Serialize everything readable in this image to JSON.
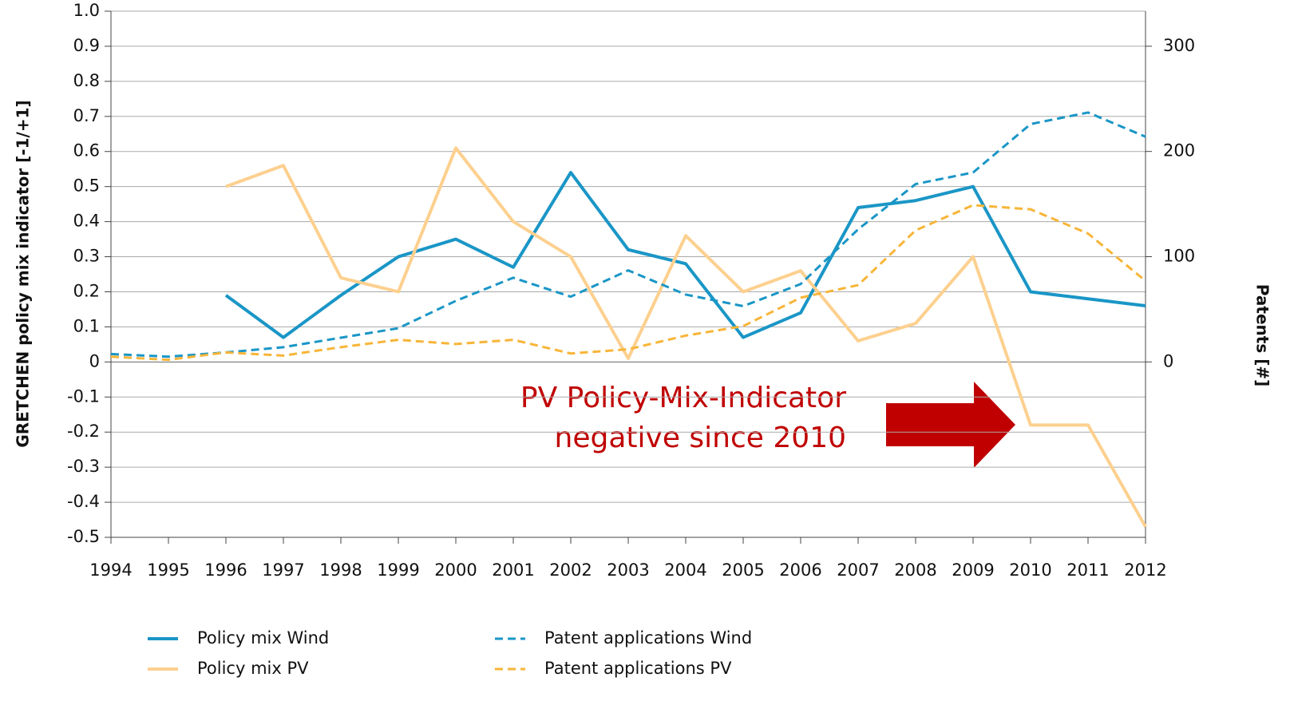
{
  "chart_data": {
    "type": "line",
    "y_label": "GRETCHEN policy  mix indicator [-1/+1]",
    "y2_label": "Patents [#]",
    "annotation": [
      "PV Policy-Mix-Indicator",
      "negative since 2010"
    ],
    "categories": [
      "1994",
      "1995",
      "1996",
      "1997",
      "1998",
      "1999",
      "2000",
      "2001",
      "2002",
      "2003",
      "2004",
      "2005",
      "2006",
      "2007",
      "2008",
      "2009",
      "2010",
      "2011",
      "2012"
    ],
    "ylim": [
      -0.5,
      1.0
    ],
    "yticks": [
      -0.5,
      -0.4,
      -0.3,
      -0.2,
      -0.1,
      0,
      0.1,
      0.2,
      0.3,
      0.4,
      0.5,
      0.6,
      0.7,
      0.8,
      0.9,
      {
        "value": 1.0,
        "label": "1.0"
      }
    ],
    "y2lim": [
      -166.7,
      333.3
    ],
    "y2ticks": [
      0,
      100,
      200,
      300
    ],
    "grid": true,
    "series": [
      {
        "name": "Policy mix Wind",
        "color": "#1a96c6",
        "dash": false,
        "values": [
          null,
          null,
          0.19,
          0.07,
          0.19,
          0.3,
          0.35,
          0.27,
          0.54,
          0.32,
          0.28,
          0.07,
          0.14,
          0.44,
          0.46,
          0.5,
          0.2,
          0.18,
          0.16
        ]
      },
      {
        "name": "Policy mix PV",
        "color": "#fdd08f",
        "dash": false,
        "values": [
          null,
          null,
          0.5,
          0.56,
          0.24,
          0.2,
          0.61,
          0.4,
          0.3,
          0.01,
          0.36,
          0.2,
          0.26,
          0.06,
          0.11,
          0.3,
          -0.18,
          -0.18,
          -0.47
        ]
      },
      {
        "name": "Patent applications Wind",
        "color": "#1a96c6",
        "dash": true,
        "axis": "y2",
        "values": [
          7.5,
          5,
          9,
          14,
          23,
          32,
          58,
          80,
          62,
          87,
          64,
          53,
          74,
          126,
          169,
          180,
          226,
          237,
          214
        ]
      },
      {
        "name": "Patent applications PV",
        "color": "#f7b538",
        "dash": true,
        "axis": "y2",
        "values": [
          5,
          2,
          9,
          6,
          14,
          21,
          17,
          21,
          8,
          12,
          25,
          34,
          61,
          73,
          125,
          149,
          145,
          122,
          77
        ]
      }
    ]
  }
}
